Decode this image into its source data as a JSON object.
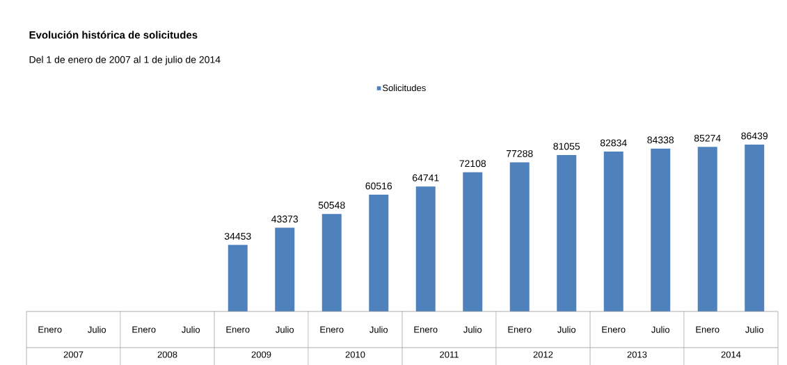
{
  "chart_data": {
    "type": "bar",
    "title": "Evolución histórica de solicitudes",
    "subtitle": "Del 1 de enero de 2007 al 1 de julio de 2014",
    "categories": [
      "Enero",
      "Julio",
      "Enero",
      "Julio",
      "Enero",
      "Julio",
      "Enero",
      "Julio",
      "Enero",
      "Julio",
      "Enero",
      "Julio",
      "Enero",
      "Julio",
      "Enero",
      "Julio"
    ],
    "series": [
      {
        "name": "Solicitudes",
        "color": "#4f81bd",
        "values": [
          null,
          null,
          null,
          null,
          34453,
          43373,
          50548,
          60516,
          64741,
          72108,
          77288,
          81055,
          82834,
          84338,
          85274,
          86439
        ]
      }
    ],
    "annotations": [
      "2007",
      "2008",
      "2009",
      "2010",
      "2011",
      "2012",
      "2013",
      "2014"
    ],
    "data_labels": true,
    "legend": "top"
  }
}
